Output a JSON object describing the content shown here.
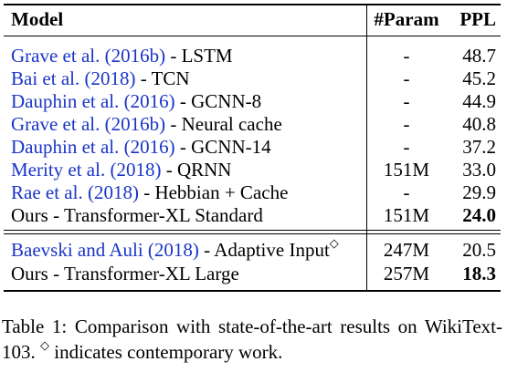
{
  "table": {
    "header": {
      "model": "Model",
      "param": "#Param",
      "ppl": "PPL"
    },
    "group1": [
      {
        "cite": "Grave et al. (2016b)",
        "rest": " - LSTM",
        "param": "-",
        "ppl": "48.7",
        "bold": false
      },
      {
        "cite": "Bai et al. (2018)",
        "rest": " - TCN",
        "param": "-",
        "ppl": "45.2",
        "bold": false
      },
      {
        "cite": "Dauphin et al. (2016)",
        "rest": " - GCNN-8",
        "param": "-",
        "ppl": "44.9",
        "bold": false
      },
      {
        "cite": "Grave et al. (2016b)",
        "rest": " - Neural cache",
        "param": "-",
        "ppl": "40.8",
        "bold": false
      },
      {
        "cite": "Dauphin et al. (2016)",
        "rest": " - GCNN-14",
        "param": "-",
        "ppl": "37.2",
        "bold": false
      },
      {
        "cite": "Merity et al. (2018)",
        "rest": " - QRNN",
        "param": "151M",
        "ppl": "33.0",
        "bold": false
      },
      {
        "cite": "Rae et al. (2018)",
        "rest": " - Hebbian + Cache",
        "param": "-",
        "ppl": "29.9",
        "bold": false
      },
      {
        "cite": "",
        "rest": "Ours - Transformer-XL Standard",
        "param": "151M",
        "ppl": "24.0",
        "bold": true
      }
    ],
    "group2": [
      {
        "cite": "Baevski and Auli (2018)",
        "rest": " - Adaptive Input",
        "mark": "◇",
        "param": "247M",
        "ppl": "20.5",
        "bold": false
      },
      {
        "cite": "",
        "rest": "Ours - Transformer-XL Large",
        "mark": "",
        "param": "257M",
        "ppl": "18.3",
        "bold": true
      }
    ]
  },
  "caption": {
    "label": "Table 1:",
    "text_part1": " Comparison with state-of-the-art results on WikiText-103. ",
    "mark": "◇",
    "text_part2": " indicates contemporary work."
  }
}
